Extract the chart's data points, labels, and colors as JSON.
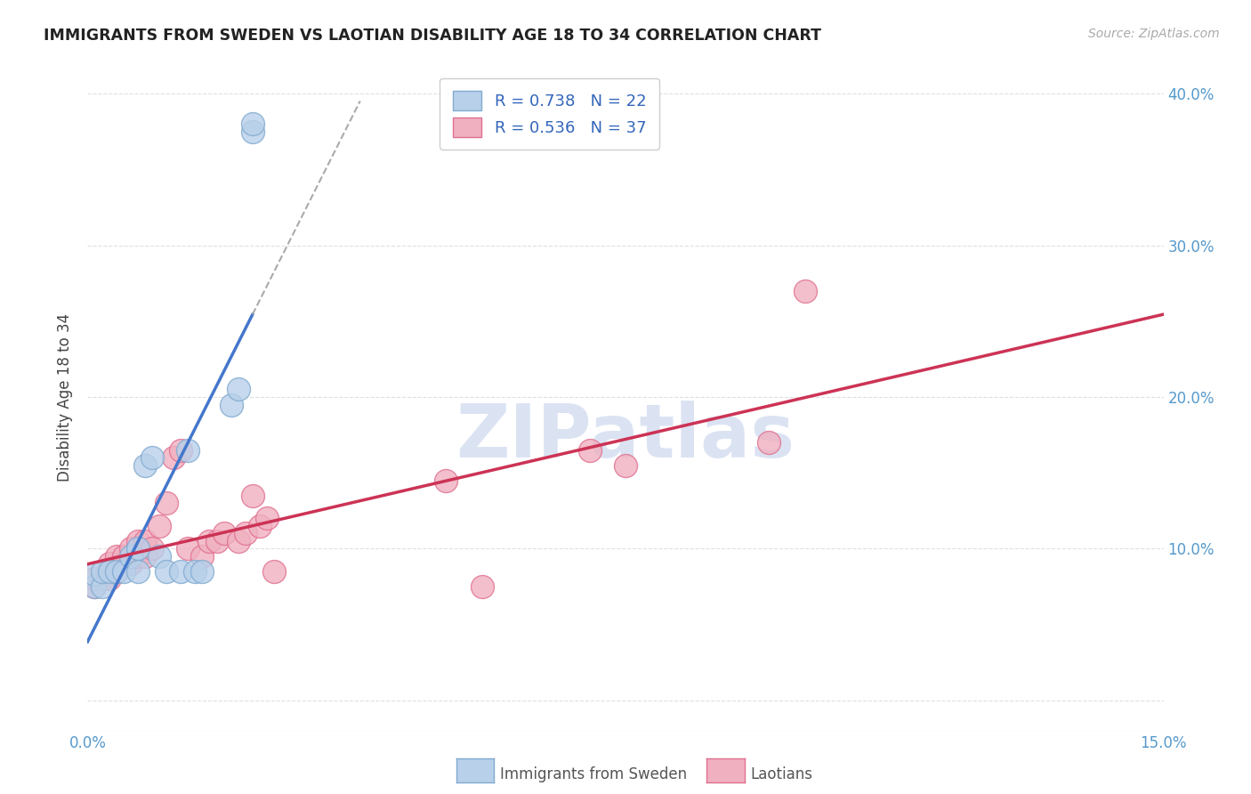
{
  "title": "IMMIGRANTS FROM SWEDEN VS LAOTIAN DISABILITY AGE 18 TO 34 CORRELATION CHART",
  "source": "Source: ZipAtlas.com",
  "ylabel": "Disability Age 18 to 34",
  "xlim": [
    0.0,
    0.15
  ],
  "ylim": [
    -0.02,
    0.42
  ],
  "xticks": [
    0.0,
    0.03,
    0.06,
    0.09,
    0.12,
    0.15
  ],
  "xtick_labels": [
    "0.0%",
    "",
    "",
    "",
    "",
    "15.0%"
  ],
  "yticks": [
    0.0,
    0.1,
    0.2,
    0.3,
    0.4
  ],
  "ytick_labels_right": [
    "",
    "10.0%",
    "20.0%",
    "30.0%",
    "40.0%"
  ],
  "r_sweden": 0.738,
  "n_sweden": 22,
  "r_laotian": 0.536,
  "n_laotian": 37,
  "sweden_color": "#b8d0ea",
  "sweden_edge": "#80aad0",
  "laotian_color": "#f0b0c0",
  "laotian_edge": "#e07090",
  "sweden_line_color": "#4477cc",
  "laotian_line_color": "#cc3355",
  "background_color": "#ffffff",
  "grid_color": "#e0e0e0",
  "watermark_text": "ZIPatlas",
  "watermark_color": "#ccd8ee",
  "sweden_x": [
    0.001,
    0.001,
    0.002,
    0.002,
    0.003,
    0.004,
    0.005,
    0.006,
    0.007,
    0.007,
    0.008,
    0.009,
    0.01,
    0.011,
    0.013,
    0.014,
    0.015,
    0.016,
    0.02,
    0.021,
    0.023,
    0.023
  ],
  "sweden_y": [
    0.075,
    0.083,
    0.075,
    0.085,
    0.085,
    0.085,
    0.085,
    0.095,
    0.085,
    0.1,
    0.155,
    0.16,
    0.095,
    0.085,
    0.085,
    0.165,
    0.085,
    0.085,
    0.195,
    0.205,
    0.375,
    0.38
  ],
  "laotian_x": [
    0.001,
    0.001,
    0.002,
    0.003,
    0.003,
    0.004,
    0.004,
    0.005,
    0.005,
    0.006,
    0.006,
    0.007,
    0.007,
    0.008,
    0.008,
    0.009,
    0.01,
    0.011,
    0.012,
    0.013,
    0.014,
    0.016,
    0.017,
    0.018,
    0.019,
    0.021,
    0.022,
    0.023,
    0.024,
    0.025,
    0.026,
    0.05,
    0.055,
    0.07,
    0.075,
    0.095,
    0.1
  ],
  "laotian_y": [
    0.075,
    0.08,
    0.08,
    0.08,
    0.09,
    0.085,
    0.095,
    0.09,
    0.095,
    0.09,
    0.1,
    0.095,
    0.105,
    0.095,
    0.105,
    0.1,
    0.115,
    0.13,
    0.16,
    0.165,
    0.1,
    0.095,
    0.105,
    0.105,
    0.11,
    0.105,
    0.11,
    0.135,
    0.115,
    0.12,
    0.085,
    0.145,
    0.075,
    0.165,
    0.155,
    0.17,
    0.27
  ],
  "sweden_line_x": [
    -0.002,
    0.022
  ],
  "sweden_line_y_intercept": -0.01,
  "sweden_line_slope": 14.5,
  "laotian_line_x": [
    0.0,
    0.15
  ],
  "laotian_line_y_at_0": 0.068,
  "laotian_line_y_at_15": 0.27
}
